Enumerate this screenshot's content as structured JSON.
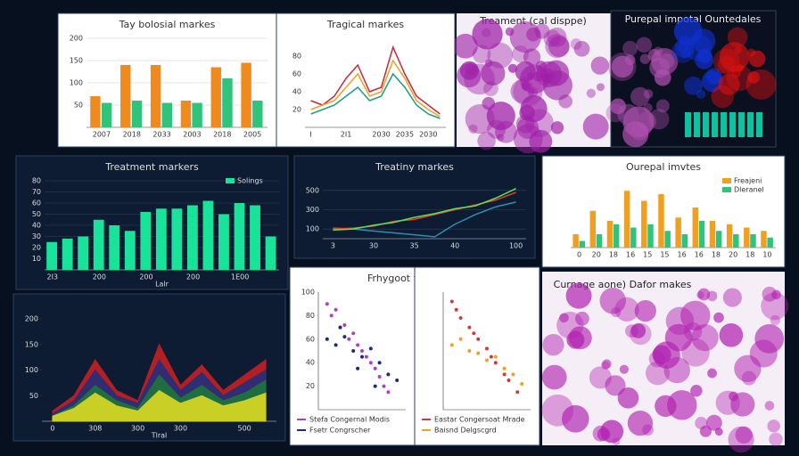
{
  "chart_data": [
    {
      "type": "bar",
      "title": "Tay bolosial markes",
      "categories": [
        "2007",
        "2018",
        "2033",
        "2003",
        "2018",
        "2005"
      ],
      "series": [
        {
          "name": "Orange",
          "color": "#f08a1c",
          "values": [
            70,
            140,
            140,
            60,
            135,
            145
          ]
        },
        {
          "name": "Green",
          "color": "#2fc47a",
          "values": [
            55,
            60,
            55,
            55,
            110,
            60
          ]
        }
      ],
      "ylim": [
        0,
        200
      ],
      "yticks": [
        50,
        100,
        150,
        200
      ],
      "grid": true
    },
    {
      "type": "line",
      "title": "Tragical markes",
      "categories": [
        "I",
        null,
        null,
        "2I1",
        null,
        null,
        "2030",
        null,
        "2035",
        null,
        "2030",
        null
      ],
      "series": [
        {
          "name": "Red",
          "color": "#c8283c",
          "values": [
            30,
            25,
            35,
            55,
            70,
            40,
            45,
            90,
            60,
            35,
            25,
            15
          ]
        },
        {
          "name": "Orange",
          "color": "#f0a020",
          "values": [
            20,
            25,
            30,
            45,
            60,
            35,
            40,
            75,
            55,
            30,
            20,
            12
          ]
        },
        {
          "name": "Teal",
          "color": "#1a9a8a",
          "values": [
            15,
            20,
            25,
            35,
            45,
            30,
            35,
            60,
            45,
            25,
            15,
            10
          ]
        }
      ],
      "ylim": [
        0,
        100
      ],
      "yticks": [
        20,
        40,
        60,
        80
      ],
      "grid": false
    },
    {
      "type": "bar",
      "title": "Treatment markers",
      "xlabel": "Lalr",
      "categories": [
        "2I3",
        null,
        null,
        "200",
        null,
        null,
        "200",
        null,
        null,
        "200",
        null,
        null,
        "1E00",
        null,
        null
      ],
      "series": [
        {
          "name": "Solings",
          "color": "#19e39a",
          "values": [
            25,
            28,
            30,
            45,
            40,
            35,
            52,
            55,
            55,
            58,
            62,
            50,
            60,
            58,
            30
          ]
        }
      ],
      "ylim": [
        0,
        80
      ],
      "yticks": [
        10,
        20,
        30,
        40,
        50,
        60,
        70,
        80
      ],
      "grid": true,
      "legend": "top-right"
    },
    {
      "type": "line",
      "title": "Treatiny markes",
      "categories": [
        "3",
        null,
        "30",
        null,
        "35",
        null,
        "40",
        null,
        null,
        "100"
      ],
      "series": [
        {
          "name": "Teal",
          "color": "#2a8fb0",
          "values": [
            110,
            100,
            80,
            60,
            40,
            20,
            150,
            250,
            330,
            380
          ]
        },
        {
          "name": "Red",
          "color": "#e0402a",
          "values": [
            100,
            110,
            130,
            180,
            200,
            250,
            300,
            350,
            400,
            480
          ]
        },
        {
          "name": "Green",
          "color": "#5ee05a",
          "values": [
            90,
            100,
            140,
            170,
            220,
            260,
            310,
            340,
            420,
            520
          ]
        }
      ],
      "ylim": [
        0,
        600
      ],
      "yticks": [
        100,
        300,
        500
      ],
      "grid": true
    },
    {
      "type": "bar",
      "title": "Ourepal imvtes",
      "categories": [
        "0",
        "20",
        "18",
        "16",
        "15",
        "15",
        "16",
        "16",
        "18",
        "20",
        "18",
        "10"
      ],
      "series": [
        {
          "name": "Freajeni",
          "color": "#f0a020",
          "values": [
            20,
            55,
            40,
            85,
            70,
            80,
            45,
            60,
            40,
            35,
            30,
            25
          ]
        },
        {
          "name": "Dleranel",
          "color": "#2fc47a",
          "values": [
            10,
            20,
            35,
            30,
            35,
            25,
            20,
            40,
            25,
            20,
            20,
            15
          ]
        }
      ],
      "ylim": [
        0,
        100
      ],
      "yticks": [],
      "grid": false,
      "legend": "top-right"
    },
    {
      "type": "area",
      "xlabel": "Tlral",
      "categories": [
        "0",
        null,
        "308",
        null,
        "300",
        null,
        "300",
        null,
        null,
        "500",
        null
      ],
      "series": [
        {
          "name": "Red",
          "color": "#d02020",
          "values": [
            20,
            50,
            120,
            60,
            40,
            150,
            70,
            110,
            60,
            90,
            120
          ]
        },
        {
          "name": "Navy",
          "color": "#1a3080",
          "values": [
            15,
            40,
            100,
            50,
            35,
            120,
            60,
            95,
            50,
            75,
            100
          ]
        },
        {
          "name": "Green",
          "color": "#1c7a3a",
          "values": [
            10,
            30,
            70,
            40,
            25,
            90,
            45,
            70,
            40,
            55,
            80
          ]
        },
        {
          "name": "Yellow",
          "color": "#e8e020",
          "values": [
            10,
            25,
            55,
            30,
            20,
            60,
            35,
            50,
            30,
            40,
            55
          ]
        }
      ],
      "ylim": [
        0,
        200
      ],
      "yticks": [
        50,
        100,
        150,
        200
      ],
      "grid": false
    },
    {
      "type": "scatter",
      "title": "Frhygoot tramearts",
      "xlim": [
        0,
        10
      ],
      "ylim": [
        0,
        100
      ],
      "yticks": [
        20,
        40,
        60,
        80,
        100
      ],
      "series": [
        {
          "name": "Stefa Congernal Modis",
          "color": "#b040c0",
          "x": [
            1,
            1.5,
            2,
            2.5,
            3,
            3.5,
            4,
            4.5,
            5,
            5.5,
            6,
            6.5,
            7,
            7.5,
            8
          ],
          "values": [
            90,
            80,
            85,
            70,
            72,
            60,
            65,
            55,
            50,
            45,
            40,
            35,
            28,
            20,
            15
          ]
        },
        {
          "name": "Fsetr Congrscher",
          "color": "#1a2a80",
          "x": [
            1,
            2,
            3,
            4,
            5,
            6,
            7,
            8,
            9,
            2.5,
            4.5,
            6.5
          ],
          "values": [
            60,
            55,
            62,
            50,
            45,
            52,
            40,
            30,
            25,
            70,
            35,
            20
          ]
        }
      ]
    },
    {
      "type": "scatter",
      "xlim": [
        0,
        10
      ],
      "ylim": [
        0,
        100
      ],
      "yticks": [],
      "series": [
        {
          "name": "Eastar Congersoat Mrade",
          "color": "#d03a3a",
          "x": [
            1,
            1.5,
            2,
            3,
            3.5,
            4,
            5,
            5.5,
            6,
            7,
            7.5,
            8.5
          ],
          "values": [
            92,
            85,
            78,
            70,
            65,
            60,
            52,
            45,
            40,
            30,
            25,
            15
          ]
        },
        {
          "name": "Baisnd Delgscgrd",
          "color": "#f0a020",
          "x": [
            1,
            2,
            3,
            4,
            5,
            6,
            7,
            8,
            9
          ],
          "values": [
            55,
            60,
            50,
            48,
            42,
            45,
            35,
            30,
            22
          ]
        }
      ]
    }
  ],
  "image_panels": [
    {
      "title": "Treament (cal disppe)"
    },
    {
      "title": "Purepal impotal Ountedales"
    },
    {
      "title": "Curnage aone) Dafor makes"
    }
  ]
}
